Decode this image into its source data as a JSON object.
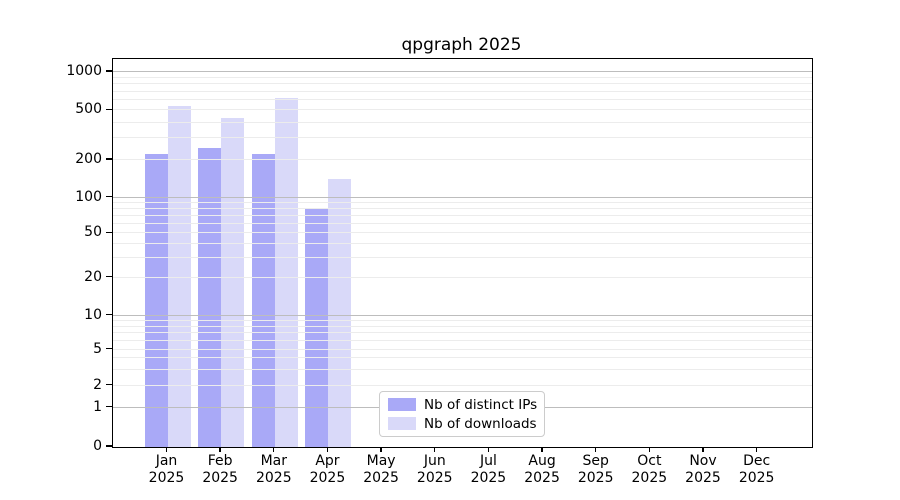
{
  "title": "qpgraph 2025",
  "chart_data": {
    "type": "bar",
    "title": "qpgraph 2025",
    "categories": [
      "Jan 2025",
      "Feb 2025",
      "Mar 2025",
      "Apr 2025",
      "May 2025",
      "Jun 2025",
      "Jul 2025",
      "Aug 2025",
      "Sep 2025",
      "Oct 2025",
      "Nov 2025",
      "Dec 2025"
    ],
    "series": [
      {
        "name": "Nb of distinct IPs",
        "color": "#a9a9f7",
        "values": [
          225,
          250,
          225,
          80,
          null,
          null,
          null,
          null,
          null,
          null,
          null,
          null
        ]
      },
      {
        "name": "Nb of downloads",
        "color": "#d9d9f9",
        "values": [
          540,
          435,
          630,
          140,
          null,
          null,
          null,
          null,
          null,
          null,
          null,
          null
        ]
      }
    ],
    "xlabel": "",
    "ylabel": "",
    "yscale": "symlog",
    "yticks": [
      0,
      1,
      2,
      5,
      10,
      20,
      50,
      100,
      200,
      500,
      1000
    ],
    "ylim": [
      0,
      1100
    ],
    "grid": true,
    "legend_position": "inside bottom-center"
  },
  "colors": {
    "bar_distinct_ips": "#a9a9f7",
    "bar_downloads": "#d9d9f9",
    "grid_major": "#bdbdbd",
    "grid_minor": "#ececec",
    "axis": "#000000",
    "background": "#ffffff"
  }
}
